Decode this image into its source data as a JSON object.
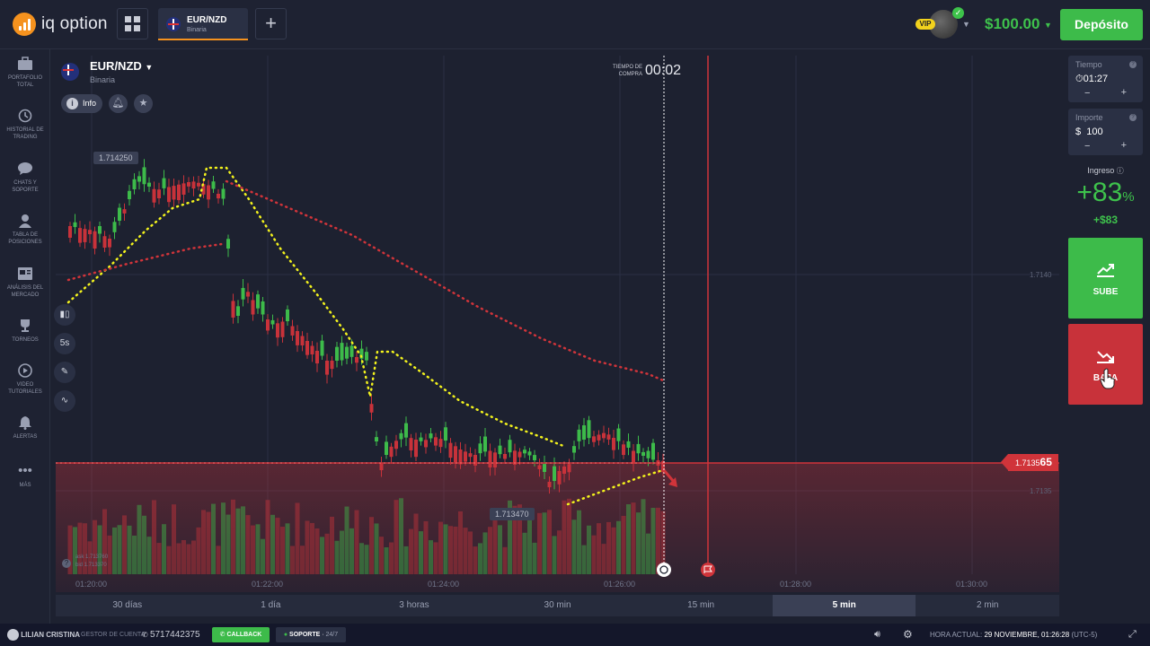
{
  "header": {
    "logo_text": "iq option",
    "asset_tab": {
      "name": "EUR/NZD",
      "type": "Binaria"
    },
    "add_tab": "+",
    "vip_badge": "VIP",
    "balance": "$100.00",
    "deposit_label": "Depósito"
  },
  "sidebar": {
    "items": [
      {
        "label": "PORTAFOLIO TOTAL",
        "icon": "briefcase-icon"
      },
      {
        "label": "HISTORIAL DE TRADING",
        "icon": "history-icon"
      },
      {
        "label": "CHATS Y SOPORTE",
        "icon": "chat-icon"
      },
      {
        "label": "TABLA DE POSICIONES",
        "icon": "leaderboard-icon"
      },
      {
        "label": "ANÁLISIS DEL MERCADO",
        "icon": "newspaper-icon"
      },
      {
        "label": "TORNEOS",
        "icon": "trophy-icon"
      },
      {
        "label": "VIDEO TUTORIALES",
        "icon": "play-icon"
      },
      {
        "label": "ALERTAS",
        "icon": "bell-icon"
      },
      {
        "label": "MÁS",
        "icon": "more-icon"
      }
    ]
  },
  "chart": {
    "asset_name": "EUR/NZD",
    "asset_type": "Binaria",
    "info_label": "Info",
    "timeframe_label": "5s",
    "timer_label": "TIEMPO DE COMPRA",
    "timer_value": "00:02",
    "current_price_prefix": "1.7135",
    "current_price_suffix": "65",
    "high_label": "1.714250",
    "low_label": "1.713470",
    "y_ticks": [
      "1.7140",
      "1.7135"
    ],
    "x_ticks": [
      "01:20:00",
      "01:22:00",
      "01:24:00",
      "01:26:00",
      "01:28:00",
      "01:30:00"
    ],
    "ask_label": "ask 1.713760",
    "bid_label": "bid 1.713370",
    "colors": {
      "up": "#3dbb4a",
      "down": "#c8323a",
      "indicator": "#f2f21d"
    }
  },
  "periods": [
    "30 días",
    "1 día",
    "3 horas",
    "30 min",
    "15 min",
    "5 min",
    "2 min"
  ],
  "periods_active": "5 min",
  "right_panel": {
    "time_label": "Tiempo",
    "time_value": "01:27",
    "amount_label": "Importe",
    "amount_currency": "$",
    "amount_value": "100",
    "minus": "−",
    "plus": "+",
    "income_label": "Ingreso",
    "income_percent": "+83",
    "income_percent_sign": "%",
    "income_amount": "+$83",
    "up_label": "SUBE",
    "down_label": "BAJA"
  },
  "bottom_bar": {
    "user_name": "LILIAN CRISTINA",
    "account_manager_label": "GESTOR DE CUENTA",
    "phone": "5717442375",
    "callback_label": "CALLBACK",
    "support_label": "SOPORTE",
    "support_hours": "24/7",
    "time_label": "HORA ACTUAL:",
    "time_value": "29 NOVIEMBRE, 01:26:28",
    "timezone": "(UTC-5)"
  }
}
